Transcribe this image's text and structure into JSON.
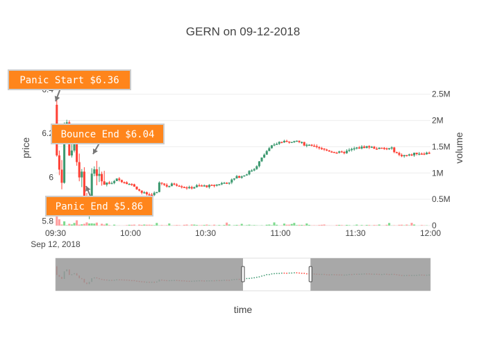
{
  "chart_data": {
    "type": "candlestick",
    "title": "GERN on 09-12-2018",
    "xlabel": "time",
    "ylabel_left": "price",
    "ylabel_right": "volume",
    "x_ticks": [
      "09:30",
      "10:00",
      "10:30",
      "11:00",
      "11:30",
      "12:00"
    ],
    "x_date_label": "Sep 12, 2018",
    "x_range": [
      "09:30",
      "12:00"
    ],
    "price_ticks": [
      "5.8",
      "6",
      "6.2",
      "6.4"
    ],
    "price_range": [
      5.78,
      6.45
    ],
    "volume_ticks": [
      "0",
      "0.5M",
      "1M",
      "1.5M",
      "2M",
      "2.5M"
    ],
    "volume_range": [
      0,
      2.8
    ],
    "colors": {
      "up": "#3D9970",
      "down": "#FF4136",
      "annotation_bg": "#FF851B",
      "annotation_border": "#cccccc",
      "arrow": "#777777",
      "rangeslider_mask": "#999999"
    },
    "price_path": [
      [
        "09:30",
        6.33
      ],
      [
        "09:31",
        6.1
      ],
      [
        "09:33",
        6.0
      ],
      [
        "09:34",
        6.2
      ],
      [
        "09:35",
        6.25
      ],
      [
        "09:36",
        6.1
      ],
      [
        "09:38",
        6.15
      ],
      [
        "09:40",
        6.02
      ],
      [
        "09:41",
        6.0
      ],
      [
        "09:42",
        5.9
      ],
      [
        "09:43",
        5.86
      ],
      [
        "09:44",
        5.92
      ],
      [
        "09:45",
        6.02
      ],
      [
        "09:46",
        6.04
      ],
      [
        "09:48",
        6.0
      ],
      [
        "09:50",
        5.98
      ],
      [
        "09:53",
        5.97
      ],
      [
        "09:55",
        5.99
      ],
      [
        "09:58",
        5.98
      ],
      [
        "10:00",
        5.97
      ],
      [
        "10:02",
        5.96
      ],
      [
        "10:05",
        5.93
      ],
      [
        "10:08",
        5.92
      ],
      [
        "10:11",
        5.93
      ],
      [
        "10:12",
        5.98
      ],
      [
        "10:15",
        5.96
      ],
      [
        "10:18",
        5.97
      ],
      [
        "10:21",
        5.96
      ],
      [
        "10:24",
        5.95
      ],
      [
        "10:27",
        5.96
      ],
      [
        "10:30",
        5.96
      ],
      [
        "10:33",
        5.96
      ],
      [
        "10:36",
        5.97
      ],
      [
        "10:40",
        5.98
      ],
      [
        "10:43",
        6.0
      ],
      [
        "10:46",
        6.01
      ],
      [
        "10:50",
        6.04
      ],
      [
        "10:52",
        6.07
      ],
      [
        "10:55",
        6.12
      ],
      [
        "10:57",
        6.14
      ],
      [
        "11:00",
        6.16
      ],
      [
        "11:03",
        6.16
      ],
      [
        "11:06",
        6.17
      ],
      [
        "11:10",
        6.15
      ],
      [
        "11:13",
        6.14
      ],
      [
        "11:16",
        6.13
      ],
      [
        "11:20",
        6.12
      ],
      [
        "11:25",
        6.11
      ],
      [
        "11:30",
        6.13
      ],
      [
        "11:35",
        6.14
      ],
      [
        "11:40",
        6.13
      ],
      [
        "11:45",
        6.13
      ],
      [
        "11:48",
        6.1
      ],
      [
        "11:52",
        6.1
      ],
      [
        "11:55",
        6.11
      ],
      [
        "12:00",
        6.11
      ]
    ],
    "volume_spikes": [
      [
        "09:30",
        0.2
      ],
      [
        "09:31",
        0.12
      ],
      [
        "09:33",
        0.08
      ],
      [
        "09:38",
        0.1
      ],
      [
        "09:42",
        0.06
      ],
      [
        "09:50",
        0.04
      ],
      [
        "10:15",
        0.04
      ],
      [
        "10:57",
        0.06
      ],
      [
        "11:05",
        0.05
      ],
      [
        "11:10",
        0.04
      ]
    ],
    "annotations": [
      {
        "text": "Panic Start $6.36",
        "time": "09:30",
        "price": 6.36
      },
      {
        "text": "Bounce End $6.04",
        "time": "09:46",
        "price": 6.04
      },
      {
        "text": "Panic End $5.86",
        "time": "09:43",
        "price": 5.86
      }
    ],
    "range_slider": {
      "range": [
        "09:30",
        "12:00"
      ],
      "selected": [
        "10:45",
        "11:12"
      ]
    }
  }
}
